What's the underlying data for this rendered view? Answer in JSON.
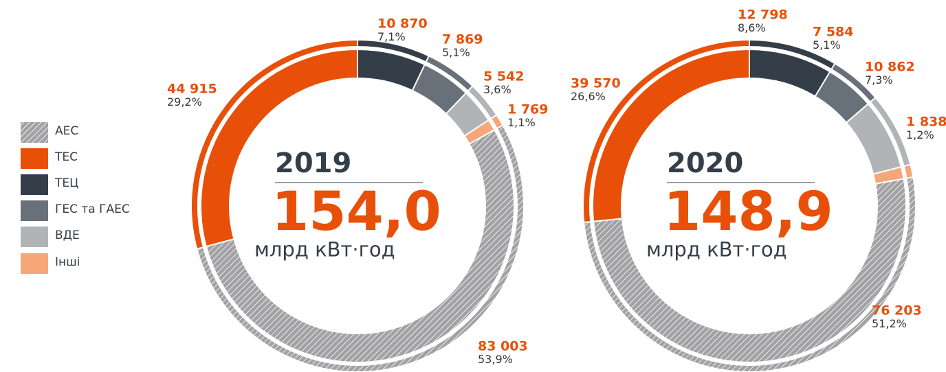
{
  "legend": {
    "categories": [
      "АЕС",
      "ТЕС",
      "ТЕЦ",
      "ГЕС та ГАЕС",
      "ВДЕ",
      "Інші"
    ],
    "colors": [
      "#a2a2a4",
      "#e8500a",
      "#343e48",
      "#68707a",
      "#b1b3b7",
      "#f5a77a"
    ],
    "hatched": [
      true,
      false,
      false,
      false,
      false,
      false
    ]
  },
  "chart_data": [
    {
      "type": "pie",
      "title": "2019",
      "total_label": "154,0",
      "unit": "млрд кВт·год",
      "values": [
        83003,
        44915,
        10870,
        7869,
        5542,
        1769
      ],
      "value_labels": [
        "83 003",
        "44 915",
        "10 870",
        "7 869",
        "5 542",
        "1 769"
      ],
      "share_labels": [
        "53,9%",
        "29,2%",
        "7,1%",
        "5,1%",
        "3,6%",
        "1,1%"
      ]
    },
    {
      "type": "pie",
      "title": "2020",
      "total_label": "148,9",
      "unit": "млрд кВт·год",
      "values": [
        76203,
        39570,
        12798,
        7584,
        10862,
        1838
      ],
      "value_labels": [
        "76 203",
        "39 570",
        "12 798",
        "7 584",
        "10 862",
        "1 838"
      ],
      "share_labels": [
        "51,2%",
        "26,6%",
        "8,6%",
        "5,1%",
        "7,3%",
        "1,2%"
      ]
    }
  ]
}
